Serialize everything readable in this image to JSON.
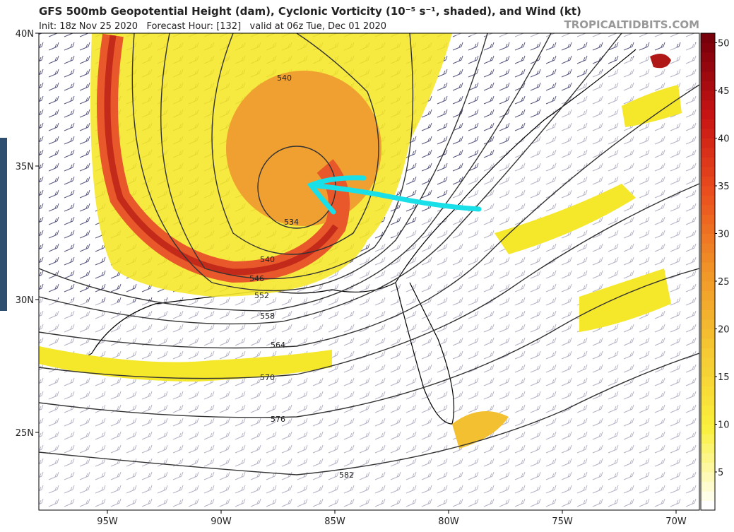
{
  "header": {
    "title": "GFS 500mb Geopotential Height (dam), Cyclonic Vorticity (10⁻⁵ s⁻¹, shaded), and Wind (kt)",
    "subtitle": "Init: 18z Nov 25 2020   Forecast Hour: [132]   valid at 06z Tue, Dec 01 2020",
    "credit": "TROPICALTIDBITS.COM"
  },
  "map": {
    "lat_labels": [
      "40N",
      "35N",
      "30N",
      "25N"
    ],
    "lon_labels": [
      "95W",
      "90W",
      "85W",
      "80W",
      "75W",
      "70W"
    ],
    "contour_labels": [
      "534",
      "540",
      "540",
      "546",
      "552",
      "558",
      "564",
      "570",
      "576",
      "582"
    ]
  },
  "colorbar": {
    "range": [
      1,
      51
    ],
    "ticks": [
      5,
      10,
      15,
      20,
      25,
      30,
      35,
      40,
      45,
      50
    ]
  }
}
